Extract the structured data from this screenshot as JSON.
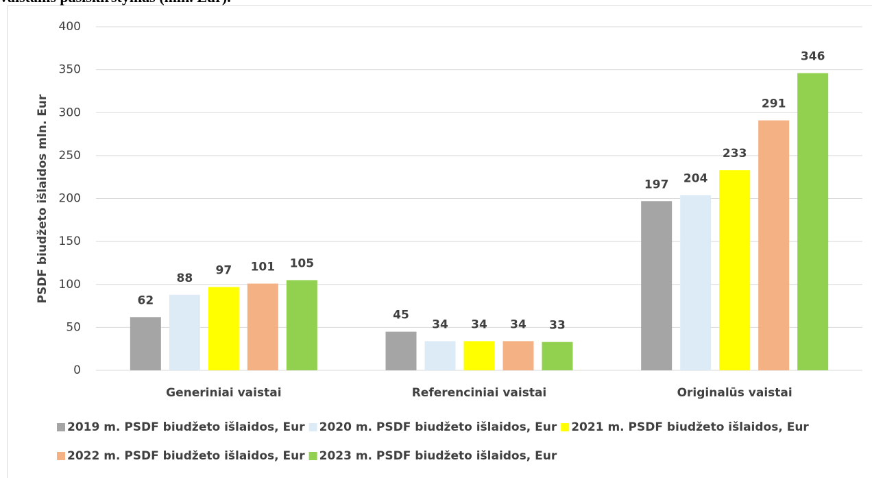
{
  "chart_data": {
    "type": "bar",
    "title": "vaistams pasiskirstymas (mln. Eur).",
    "y_label": "PSDF biudžeto išlaidos mln. Eur",
    "categories": [
      "Generiniai vaistai",
      "Referenciniai vaistai",
      "Originalūs vaistai"
    ],
    "series": [
      {
        "name": "2019 m. PSDF biudžeto išlaidos, Eur",
        "color": "#a5a5a5",
        "values": [
          62,
          45,
          197
        ]
      },
      {
        "name": "2020 m. PSDF biudžeto išlaidos, Eur",
        "color": "#ddebf7",
        "values": [
          88,
          34,
          204
        ]
      },
      {
        "name": "2021 m. PSDF biudžeto išlaidos, Eur",
        "color": "#ffff00",
        "values": [
          97,
          34,
          233
        ]
      },
      {
        "name": "2022 m. PSDF biudžeto išlaidos, Eur",
        "color": "#f4b183",
        "values": [
          101,
          34,
          291
        ]
      },
      {
        "name": "2023 m. PSDF biudžeto išlaidos, Eur",
        "color": "#92d050",
        "values": [
          105,
          33,
          346
        ]
      }
    ],
    "ylim": [
      0,
      400
    ],
    "yticks": [
      0,
      50,
      100,
      150,
      200,
      250,
      300,
      350,
      400
    ],
    "grid": true,
    "legend": "bottom"
  }
}
